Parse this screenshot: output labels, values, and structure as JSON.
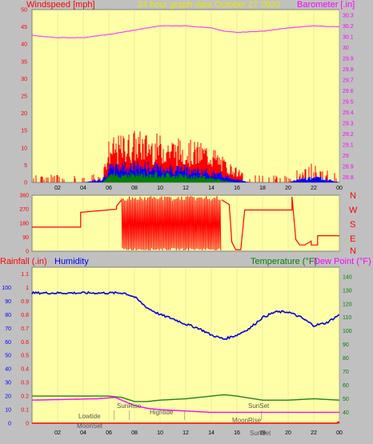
{
  "colors": {
    "plot_bg": "#ffffa8",
    "page_bg": "#c0c0c0",
    "red_label": "#ff0000",
    "magenta_label": "#ff00ff",
    "blue_label": "#0000ff",
    "green_label": "#008000",
    "title_color": "#e8e800",
    "wind_speed": "#ff0000",
    "wind_gust_mid": "#0000ff",
    "wind_low": "#008000",
    "barometer": "#ff40ff",
    "direction": "#ff0000",
    "humidity": "#0000e0",
    "temperature": "#208020",
    "dewpoint": "#ff00ff",
    "rainfall": "#ff0000"
  },
  "header": {
    "windspeed_label": "Windspeed [mph]",
    "title": "24 hour graph date   October 27 2020",
    "barometer_label": "Barometer [.in]"
  },
  "direction_labels": [
    "N",
    "W",
    "S",
    "E",
    "N"
  ],
  "lower_header": {
    "rainfall_label": "Rainfall (.in)",
    "humidity_label": "Humidity",
    "temperature_label": "Temperature (°F)",
    "dewpoint_label": "Dew Point (°F)"
  },
  "events": {
    "lowtide": "Lowtide",
    "moonset": "MoonSet",
    "sunrise": "SunRise",
    "hightide": "Hightide",
    "sunset_top": "SunSet",
    "moonrise": "MoonRise",
    "sunset_axis": "SunSet"
  },
  "chart_data": [
    {
      "type": "bar",
      "panel": "wind-and-barometer",
      "x_ticks": [
        "02",
        "04",
        "06",
        "08",
        "10",
        "12",
        "14",
        "16",
        "18",
        "20",
        "22",
        "00"
      ],
      "left_axis": {
        "label": "Windspeed [mph]",
        "ticks": [
          "0",
          "5",
          "10",
          "15",
          "20",
          "25",
          "30",
          "35",
          "40",
          "45",
          "50"
        ],
        "ylim": [
          0,
          50
        ]
      },
      "right_axis": {
        "label": "Barometer [.in]",
        "ticks": [
          "28.8",
          "28.9",
          "29",
          "29.1",
          "29.2",
          "29.3",
          "29.4",
          "29.5",
          "29.6",
          "29.7",
          "29.8",
          "29.9",
          "30",
          "30.1",
          "30.2",
          "30.3"
        ],
        "ylim": [
          28.75,
          30.35
        ]
      },
      "barometer_series": {
        "hours": [
          0,
          2,
          4,
          6,
          8,
          10,
          12,
          14,
          15,
          16,
          18,
          20,
          22,
          24
        ],
        "values": [
          30.11,
          30.09,
          30.09,
          30.12,
          30.16,
          30.2,
          30.2,
          30.18,
          30.15,
          30.14,
          30.15,
          30.18,
          30.2,
          30.19
        ]
      },
      "wind_profile": {
        "hours": [
          0,
          4,
          5.5,
          6,
          7,
          8,
          10,
          12,
          14,
          15,
          16,
          17,
          20,
          21,
          22,
          23,
          24
        ],
        "speed": [
          1.5,
          1.5,
          2,
          9,
          10,
          11,
          10,
          9,
          8,
          5,
          3,
          1.5,
          1.5,
          3,
          4,
          2.5,
          1.5
        ],
        "gust": [
          0,
          0,
          1,
          4,
          5,
          5,
          4.5,
          4,
          3,
          2,
          1,
          0,
          0,
          1,
          1.5,
          1,
          0
        ],
        "low": [
          0,
          0,
          0,
          2,
          2.5,
          2.5,
          2.5,
          2,
          1.5,
          0.5,
          0,
          0,
          0,
          0,
          0,
          0,
          0
        ]
      }
    },
    {
      "type": "line",
      "panel": "wind-direction",
      "y_ticks": [
        "0",
        "90",
        "180",
        "270",
        "360"
      ],
      "ylim": [
        0,
        360
      ],
      "segments": [
        {
          "hours": [
            0,
            3.8,
            3.8,
            6.6,
            6.6,
            7.0
          ],
          "values": [
            155,
            155,
            250,
            270,
            290,
            330
          ]
        },
        {
          "hours": [
            14.8,
            15.4,
            15.6,
            15.9,
            16.3,
            16.6,
            16.6
          ],
          "values": [
            330,
            300,
            60,
            10,
            10,
            260,
            265
          ]
        },
        {
          "hours": [
            16.6,
            20.3,
            20.3,
            20.6,
            20.9,
            21.3,
            21.8,
            21.8,
            22.3,
            22.3,
            24
          ],
          "values": [
            265,
            265,
            350,
            75,
            40,
            40,
            65,
            40,
            40,
            100,
            100
          ]
        }
      ],
      "swing_range": {
        "from_hour": 7.0,
        "to_hour": 14.8,
        "min": 5,
        "max": 355
      }
    },
    {
      "type": "line",
      "panel": "rain-humidity-temperature",
      "left_axis": {
        "label": "Rainfall (.in)  Humidity",
        "ticks": [
          "0",
          "0.1",
          "0.2",
          "0.3",
          "0.4",
          "0.5",
          "0.6",
          "0.7",
          "0.8",
          "0.9",
          "1",
          "1.1"
        ],
        "ylim": [
          0,
          1.15
        ]
      },
      "humidity_axis": {
        "ticks": [
          "0",
          "10",
          "20",
          "30",
          "40",
          "50",
          "60",
          "70",
          "80",
          "90",
          "100"
        ],
        "ylim": [
          0,
          115
        ]
      },
      "right_axis": {
        "label": "Temperature (°F)",
        "ticks": [
          "40",
          "50",
          "60",
          "70",
          "80",
          "90",
          "100",
          "110",
          "120",
          "130",
          "140"
        ],
        "ylim": [
          32,
          147
        ]
      },
      "series": [
        {
          "name": "Humidity",
          "hours": [
            0,
            6,
            6.7,
            7.2,
            8,
            9,
            10,
            11,
            12,
            13,
            14,
            15,
            16,
            17,
            18,
            19,
            20,
            21,
            22,
            23,
            24
          ],
          "values": [
            96,
            96,
            96,
            96,
            93,
            85,
            80,
            77,
            73,
            70,
            65,
            62,
            65,
            70,
            78,
            82,
            82,
            78,
            72,
            74,
            80
          ]
        },
        {
          "name": "Temperature (°F)",
          "hours": [
            0,
            6,
            7,
            8,
            9,
            10,
            12,
            14,
            15,
            16,
            18,
            20,
            22,
            24
          ],
          "values": [
            52,
            52,
            51,
            48,
            48,
            49,
            50,
            52,
            53,
            52,
            49,
            49,
            50,
            49
          ]
        },
        {
          "name": "Dew Point (°F)",
          "hours": [
            0,
            5,
            6.5,
            7,
            8,
            9,
            10,
            12,
            14,
            15,
            16,
            18,
            20,
            24
          ],
          "values": [
            49,
            50,
            51,
            49,
            45,
            43,
            42,
            41,
            40,
            40,
            40,
            40,
            40,
            40
          ]
        },
        {
          "name": "Rainfall (.in)",
          "hours": [
            0,
            23.8,
            23.9,
            24
          ],
          "values": [
            0,
            0,
            0.01,
            0
          ]
        }
      ],
      "x_ticks": [
        "02",
        "04",
        "06",
        "08",
        "10",
        "12",
        "14",
        "16",
        "18",
        "20",
        "22",
        "00"
      ]
    }
  ]
}
